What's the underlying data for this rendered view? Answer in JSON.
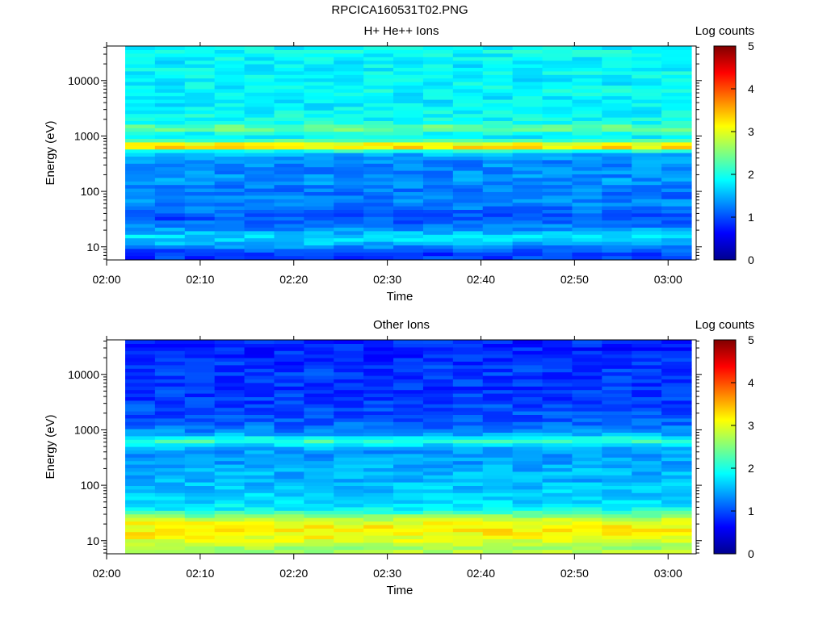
{
  "figure_title": "RPCICA160531T02.PNG",
  "chart_data": [
    {
      "type": "heatmap",
      "title": "H+ He++ Ions",
      "xlabel": "Time",
      "ylabel": "Energy (eV)",
      "x_ticks": [
        "02:00",
        "02:10",
        "02:20",
        "02:30",
        "02:40",
        "02:50",
        "03:00"
      ],
      "y_ticks": [
        "10",
        "100",
        "1000",
        "10000"
      ],
      "y_scale": "log",
      "ylim": [
        5.8,
        42000
      ],
      "xlim": [
        "02:00",
        "03:03"
      ],
      "data_start": "02:02",
      "colorbar": {
        "label": "Log counts",
        "ticks": [
          "0",
          "1",
          "2",
          "3",
          "4",
          "5"
        ],
        "range": [
          0,
          5
        ]
      },
      "profile": {
        "energy_eV": [
          8,
          12,
          16,
          20,
          25,
          32,
          40,
          50,
          64,
          80,
          100,
          130,
          160,
          200,
          260,
          330,
          420,
          520,
          600,
          660,
          740,
          900,
          1100,
          1400,
          1800,
          2500,
          3500,
          5000,
          7000,
          10000,
          14000,
          20000,
          30000,
          40000
        ],
        "log_counts": [
          0.9,
          1.6,
          1.7,
          1.4,
          1.2,
          1.0,
          1.1,
          1.2,
          1.3,
          1.2,
          1.2,
          1.3,
          1.4,
          1.3,
          1.3,
          1.3,
          1.4,
          1.6,
          3.1,
          3.4,
          3.0,
          1.8,
          1.9,
          2.5,
          1.9,
          1.9,
          1.8,
          1.8,
          1.9,
          1.8,
          1.9,
          1.8,
          1.9,
          1.9
        ]
      }
    },
    {
      "type": "heatmap",
      "title": "Other Ions",
      "xlabel": "Time",
      "ylabel": "Energy (eV)",
      "x_ticks": [
        "02:00",
        "02:10",
        "02:20",
        "02:30",
        "02:40",
        "02:50",
        "03:00"
      ],
      "y_ticks": [
        "10",
        "100",
        "1000",
        "10000"
      ],
      "y_scale": "log",
      "ylim": [
        5.8,
        42000
      ],
      "xlim": [
        "02:00",
        "03:03"
      ],
      "data_start": "02:02",
      "colorbar": {
        "label": "Log counts",
        "ticks": [
          "0",
          "1",
          "2",
          "3",
          "4",
          "5"
        ],
        "range": [
          0,
          5
        ]
      },
      "profile": {
        "energy_eV": [
          8,
          12,
          16,
          20,
          25,
          32,
          40,
          50,
          64,
          80,
          100,
          130,
          160,
          200,
          260,
          330,
          420,
          520,
          600,
          660,
          740,
          900,
          1100,
          1400,
          1800,
          2500,
          3500,
          5000,
          7000,
          10000,
          14000,
          20000,
          30000,
          40000
        ],
        "log_counts": [
          2.7,
          3.1,
          3.2,
          3.1,
          2.8,
          2.2,
          1.8,
          1.7,
          1.7,
          1.6,
          1.6,
          1.5,
          1.5,
          1.5,
          1.4,
          1.4,
          1.4,
          1.6,
          2.0,
          2.4,
          1.8,
          1.3,
          1.2,
          1.1,
          1.0,
          1.0,
          0.9,
          0.9,
          0.9,
          0.9,
          0.9,
          0.8,
          0.8,
          0.8
        ]
      }
    }
  ]
}
